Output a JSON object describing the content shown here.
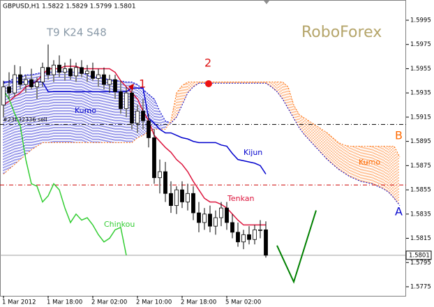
{
  "chart_data": {
    "type": "candlestick",
    "header": "GBPUSD,H1  1.5822 1.5829 1.5799 1.5801",
    "settings_label": "T9 K24 S48",
    "watermark": "RoboForex",
    "categories": [
      "1 Mar 2012",
      null,
      null,
      null,
      null,
      null,
      null,
      null,
      "1 Mar 18:00",
      null,
      null,
      null,
      null,
      null,
      null,
      null,
      "2 Mar 02:00",
      null,
      null,
      null,
      null,
      null,
      null,
      null,
      "2 Mar 10:00",
      null,
      null,
      null,
      null,
      null,
      null,
      null,
      "2 Mar 18:00",
      null,
      null,
      null,
      null,
      null,
      null,
      null,
      "5 Mar 02:00",
      null,
      null,
      null,
      null,
      null,
      null,
      null,
      null,
      null,
      null,
      null,
      null,
      null,
      null,
      null,
      null,
      null,
      null,
      null,
      null,
      null,
      null,
      null,
      null,
      null,
      null,
      null,
      null,
      null,
      null,
      null
    ],
    "ohlc": {
      "open": [
        1.5925,
        1.594,
        1.5935,
        1.595,
        1.5942,
        1.5946,
        1.594,
        1.5944,
        1.5956,
        1.595,
        1.5958,
        1.5952,
        1.5955,
        1.5949,
        1.5956,
        1.5951,
        1.5953,
        1.5947,
        1.595,
        1.5942,
        1.5946,
        1.5936,
        1.5922,
        1.5935,
        1.591,
        1.592,
        1.5912,
        1.5898,
        1.5865,
        1.587,
        1.5852,
        1.5842,
        1.5855,
        1.5845,
        1.5852,
        1.5836,
        1.5828,
        1.5835,
        1.5825,
        1.5832,
        1.584,
        1.5828,
        1.582,
        1.5812,
        1.5818,
        1.5814,
        1.5822,
        1.5822,
        null,
        null,
        null,
        null,
        null,
        null,
        null,
        null,
        null,
        null,
        null,
        null,
        null,
        null,
        null,
        null,
        null,
        null,
        null,
        null,
        null,
        null,
        null,
        null
      ],
      "high": [
        1.5945,
        1.5952,
        1.5958,
        1.5957,
        1.595,
        1.5955,
        1.5948,
        1.596,
        1.5975,
        1.5962,
        1.5966,
        1.596,
        1.5963,
        1.596,
        1.5962,
        1.5958,
        1.596,
        1.5955,
        1.5956,
        1.595,
        1.595,
        1.5945,
        1.594,
        1.5942,
        1.5925,
        1.593,
        1.5918,
        1.5905,
        1.588,
        1.5878,
        1.5862,
        1.5858,
        1.5862,
        1.586,
        1.5858,
        1.5845,
        1.584,
        1.5842,
        1.5838,
        1.5845,
        1.5845,
        1.5835,
        1.5828,
        1.5822,
        1.5825,
        1.5826,
        1.583,
        1.5829,
        null,
        null,
        null,
        null,
        null,
        null,
        null,
        null,
        null,
        null,
        null,
        null,
        null,
        null,
        null,
        null,
        null,
        null,
        null,
        null,
        null,
        null,
        null,
        null
      ],
      "low": [
        1.5915,
        1.593,
        1.5932,
        1.5938,
        1.5935,
        1.5938,
        1.593,
        1.594,
        1.5946,
        1.5944,
        1.5948,
        1.5945,
        1.5946,
        1.5944,
        1.5948,
        1.5944,
        1.5945,
        1.594,
        1.5938,
        1.5935,
        1.593,
        1.5918,
        1.5915,
        1.5905,
        1.5902,
        1.5905,
        1.589,
        1.586,
        1.5852,
        1.5845,
        1.5836,
        1.5835,
        1.584,
        1.5838,
        1.583,
        1.582,
        1.5822,
        1.582,
        1.5818,
        1.5825,
        1.5822,
        1.5815,
        1.5808,
        1.5806,
        1.581,
        1.581,
        1.5815,
        1.5799,
        null,
        null,
        null,
        null,
        null,
        null,
        null,
        null,
        null,
        null,
        null,
        null,
        null,
        null,
        null,
        null,
        null,
        null,
        null,
        null,
        null,
        null,
        null,
        null
      ],
      "close": [
        1.594,
        1.5935,
        1.595,
        1.5942,
        1.5946,
        1.594,
        1.5944,
        1.5956,
        1.595,
        1.5958,
        1.5952,
        1.5955,
        1.5949,
        1.5956,
        1.5951,
        1.5953,
        1.5947,
        1.595,
        1.5942,
        1.5946,
        1.5936,
        1.5922,
        1.5935,
        1.591,
        1.592,
        1.5912,
        1.5898,
        1.5865,
        1.587,
        1.5852,
        1.5842,
        1.5855,
        1.5845,
        1.5852,
        1.5836,
        1.5828,
        1.5835,
        1.5825,
        1.5832,
        1.584,
        1.5828,
        1.582,
        1.5812,
        1.5818,
        1.5814,
        1.5822,
        1.5822,
        1.5801,
        null,
        null,
        null,
        null,
        null,
        null,
        null,
        null,
        null,
        null,
        null,
        null,
        null,
        null,
        null,
        null,
        null,
        null,
        null,
        null,
        null,
        null,
        null,
        null
      ]
    },
    "ylim": [
      1.57675,
      1.60117
    ],
    "yticks": [
      1.5995,
      1.5975,
      1.5955,
      1.5935,
      1.5915,
      1.5895,
      1.5875,
      1.5855,
      1.5835,
      1.5815,
      1.5795,
      1.5775
    ],
    "current_price": 1.5801,
    "series": [
      {
        "name": "Tenkan",
        "color": "#dc143c",
        "values": [
          1.5925,
          1.5928,
          1.5932,
          1.5935,
          1.594,
          1.5942,
          1.5945,
          1.595,
          1.5955,
          1.5955,
          1.5955,
          1.5957,
          1.5957,
          1.5957,
          1.5955,
          1.5955,
          1.5955,
          1.5955,
          1.5955,
          1.5955,
          1.5952,
          1.5945,
          1.594,
          1.5935,
          1.593,
          1.592,
          1.5912,
          1.59,
          1.5895,
          1.589,
          1.5886,
          1.588,
          1.5876,
          1.587,
          1.5862,
          1.5855,
          1.5848,
          1.5845,
          1.5845,
          1.5843,
          1.584,
          1.5835,
          1.583,
          1.5826,
          1.5826,
          1.5826,
          1.5826,
          1.5826,
          null,
          null,
          null,
          null,
          null,
          null,
          null,
          null,
          null,
          null,
          null,
          null,
          null,
          null,
          null,
          null,
          null,
          null,
          null,
          null,
          null,
          null,
          null,
          null
        ]
      },
      {
        "name": "Kijun",
        "color": "#0000cd",
        "values": [
          1.5944,
          1.5944,
          1.5944,
          1.5944,
          1.5944,
          1.5944,
          1.5944,
          1.5944,
          1.5936,
          1.5936,
          1.5936,
          1.5936,
          1.5936,
          1.5936,
          1.5936,
          1.5936,
          1.5936,
          1.5936,
          1.5936,
          1.5936,
          1.5936,
          1.5936,
          1.5936,
          1.5939,
          1.5939,
          1.5939,
          1.5914,
          1.591,
          1.5905,
          1.5902,
          1.5902,
          1.59,
          1.5898,
          1.5897,
          1.5895,
          1.5894,
          1.5894,
          1.5894,
          1.5894,
          1.5892,
          1.5891,
          1.5885,
          1.588,
          1.5879,
          1.5878,
          1.5877,
          1.5875,
          1.5868,
          null,
          null,
          null,
          null,
          null,
          null,
          null,
          null,
          null,
          null,
          null,
          null,
          null,
          null,
          null,
          null,
          null,
          null,
          null,
          null,
          null,
          null,
          null,
          null
        ]
      },
      {
        "name": "Chinkou",
        "color": "#32cd32",
        "values": [
          1.5937,
          1.593,
          1.5918,
          1.5908,
          1.588,
          1.586,
          1.5858,
          1.5845,
          1.585,
          1.586,
          1.5855,
          1.584,
          1.5828,
          1.5835,
          1.583,
          1.5832,
          1.5826,
          1.5818,
          1.5812,
          1.5815,
          1.5822,
          1.5824,
          1.5801,
          null,
          null,
          null,
          null,
          null,
          null,
          null,
          null,
          null,
          null,
          null,
          null,
          null,
          null,
          null,
          null,
          null,
          null,
          null,
          null,
          null,
          null,
          null,
          null,
          null,
          null,
          null,
          null,
          null,
          null,
          null,
          null,
          null,
          null,
          null,
          null,
          null,
          null,
          null,
          null,
          null,
          null,
          null,
          null,
          null,
          null,
          null,
          null,
          null
        ]
      }
    ],
    "cloud": {
      "name": "Kumo",
      "spans": [
        {
          "name": "A",
          "color": "#0000cc",
          "values": [
            1.5943,
            1.5945,
            1.5947,
            1.5948,
            1.595,
            1.595,
            1.5951,
            1.5952,
            1.5952,
            1.5953,
            1.5953,
            1.5953,
            1.5953,
            1.5952,
            1.5952,
            1.595,
            1.5948,
            1.5948,
            1.5947,
            1.5946,
            1.5945,
            1.5945,
            1.5944,
            1.5944,
            1.5942,
            1.5938,
            1.5934,
            1.593,
            1.592,
            1.5912,
            1.591,
            1.5915,
            1.5925,
            1.5935,
            1.594,
            1.5943,
            1.5943,
            1.5943,
            1.5943,
            1.5943,
            1.5943,
            1.5943,
            1.5943,
            1.5943,
            1.5943,
            1.5943,
            1.5943,
            1.5943,
            1.594,
            1.5936,
            1.593,
            1.5922,
            1.5914,
            1.5906,
            1.59,
            1.5895,
            1.589,
            1.5885,
            1.588,
            1.5876,
            1.5872,
            1.5869,
            1.5866,
            1.5864,
            1.5862,
            1.5861,
            1.586,
            1.5858,
            1.5856,
            1.5853,
            1.5848,
            1.5842
          ]
        },
        {
          "name": "B",
          "color": "#ff6a00",
          "values": [
            1.5868,
            1.5872,
            1.5876,
            1.588,
            1.5884,
            1.5888,
            1.5891,
            1.5894,
            1.5894,
            1.5894,
            1.5894,
            1.5894,
            1.5894,
            1.5894,
            1.5894,
            1.5894,
            1.5894,
            1.5894,
            1.5894,
            1.5894,
            1.5894,
            1.5894,
            1.5894,
            1.5894,
            1.5898,
            1.59,
            1.5903,
            1.5905,
            1.5905,
            1.5905,
            1.5912,
            1.5935,
            1.5941,
            1.5944,
            1.5944,
            1.5944,
            1.5944,
            1.5944,
            1.5944,
            1.5944,
            1.5944,
            1.5944,
            1.5944,
            1.5944,
            1.5944,
            1.5944,
            1.5944,
            1.5944,
            1.5944,
            1.5944,
            1.5944,
            1.594,
            1.5925,
            1.5917,
            1.5914,
            1.5911,
            1.5908,
            1.5905,
            1.5902,
            1.5898,
            1.5894,
            1.5892,
            1.5891,
            1.5891,
            1.5891,
            1.5891,
            1.5891,
            1.5891,
            1.5891,
            1.5891,
            1.5891,
            1.5882
          ]
        }
      ]
    },
    "levels": [
      {
        "value": 1.5909,
        "label": "#23832336 sell",
        "color": "#000000"
      },
      {
        "value": 1.5859,
        "color": "#cc0000"
      }
    ],
    "forecast": {
      "color": "#008000",
      "x": [
        49,
        52,
        56
      ],
      "values": [
        1.5809,
        1.5779,
        1.5838
      ]
    },
    "annotations": [
      {
        "text": "1"
      },
      {
        "text": "2"
      },
      {
        "text": "Kumo"
      }
    ]
  }
}
